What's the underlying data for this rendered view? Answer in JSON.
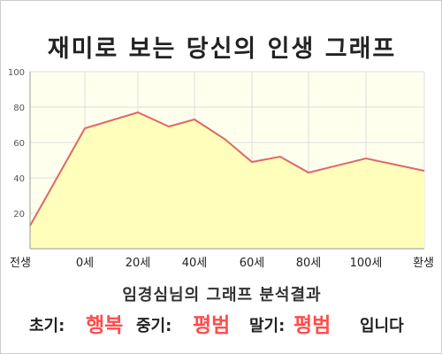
{
  "page": {
    "title": "재미로 보는 당신의 인생 그래프"
  },
  "chart_data": {
    "type": "area",
    "title": "재미로 보는 당신의 인생 그래프",
    "x_tick_labels": [
      "전생",
      "0세",
      "20세",
      "40세",
      "60세",
      "80세",
      "100세",
      "환생"
    ],
    "y_ticks": [
      20,
      40,
      60,
      80,
      100
    ],
    "ylim": [
      0,
      100
    ],
    "grid": true,
    "series": [
      {
        "points": [
          {
            "x": "전생",
            "y": 13
          },
          {
            "x": "0세",
            "y": 68
          },
          {
            "x": "20세",
            "y": 77
          },
          {
            "x": "30세",
            "y": 69
          },
          {
            "x": "40세",
            "y": 73
          },
          {
            "x": "50세",
            "y": 62
          },
          {
            "x": "60세",
            "y": 49
          },
          {
            "x": "70세",
            "y": 52
          },
          {
            "x": "80세",
            "y": 43
          },
          {
            "x": "100세",
            "y": 51
          },
          {
            "x": "환생",
            "y": 44
          }
        ]
      }
    ],
    "colors": {
      "line": "#e06666",
      "fill": "#ffffbb",
      "plot_background": "#ffffee",
      "grid": "#dddddd"
    }
  },
  "result": {
    "heading": "임경심님의 그래프 분석결과",
    "early_label": "초기:",
    "early_value": "행복",
    "middle_label": "중기:",
    "middle_value": "평범",
    "late_label": "말기:",
    "late_value": "평범",
    "ending": "입니다",
    "value_color": "#ff4d4d"
  }
}
